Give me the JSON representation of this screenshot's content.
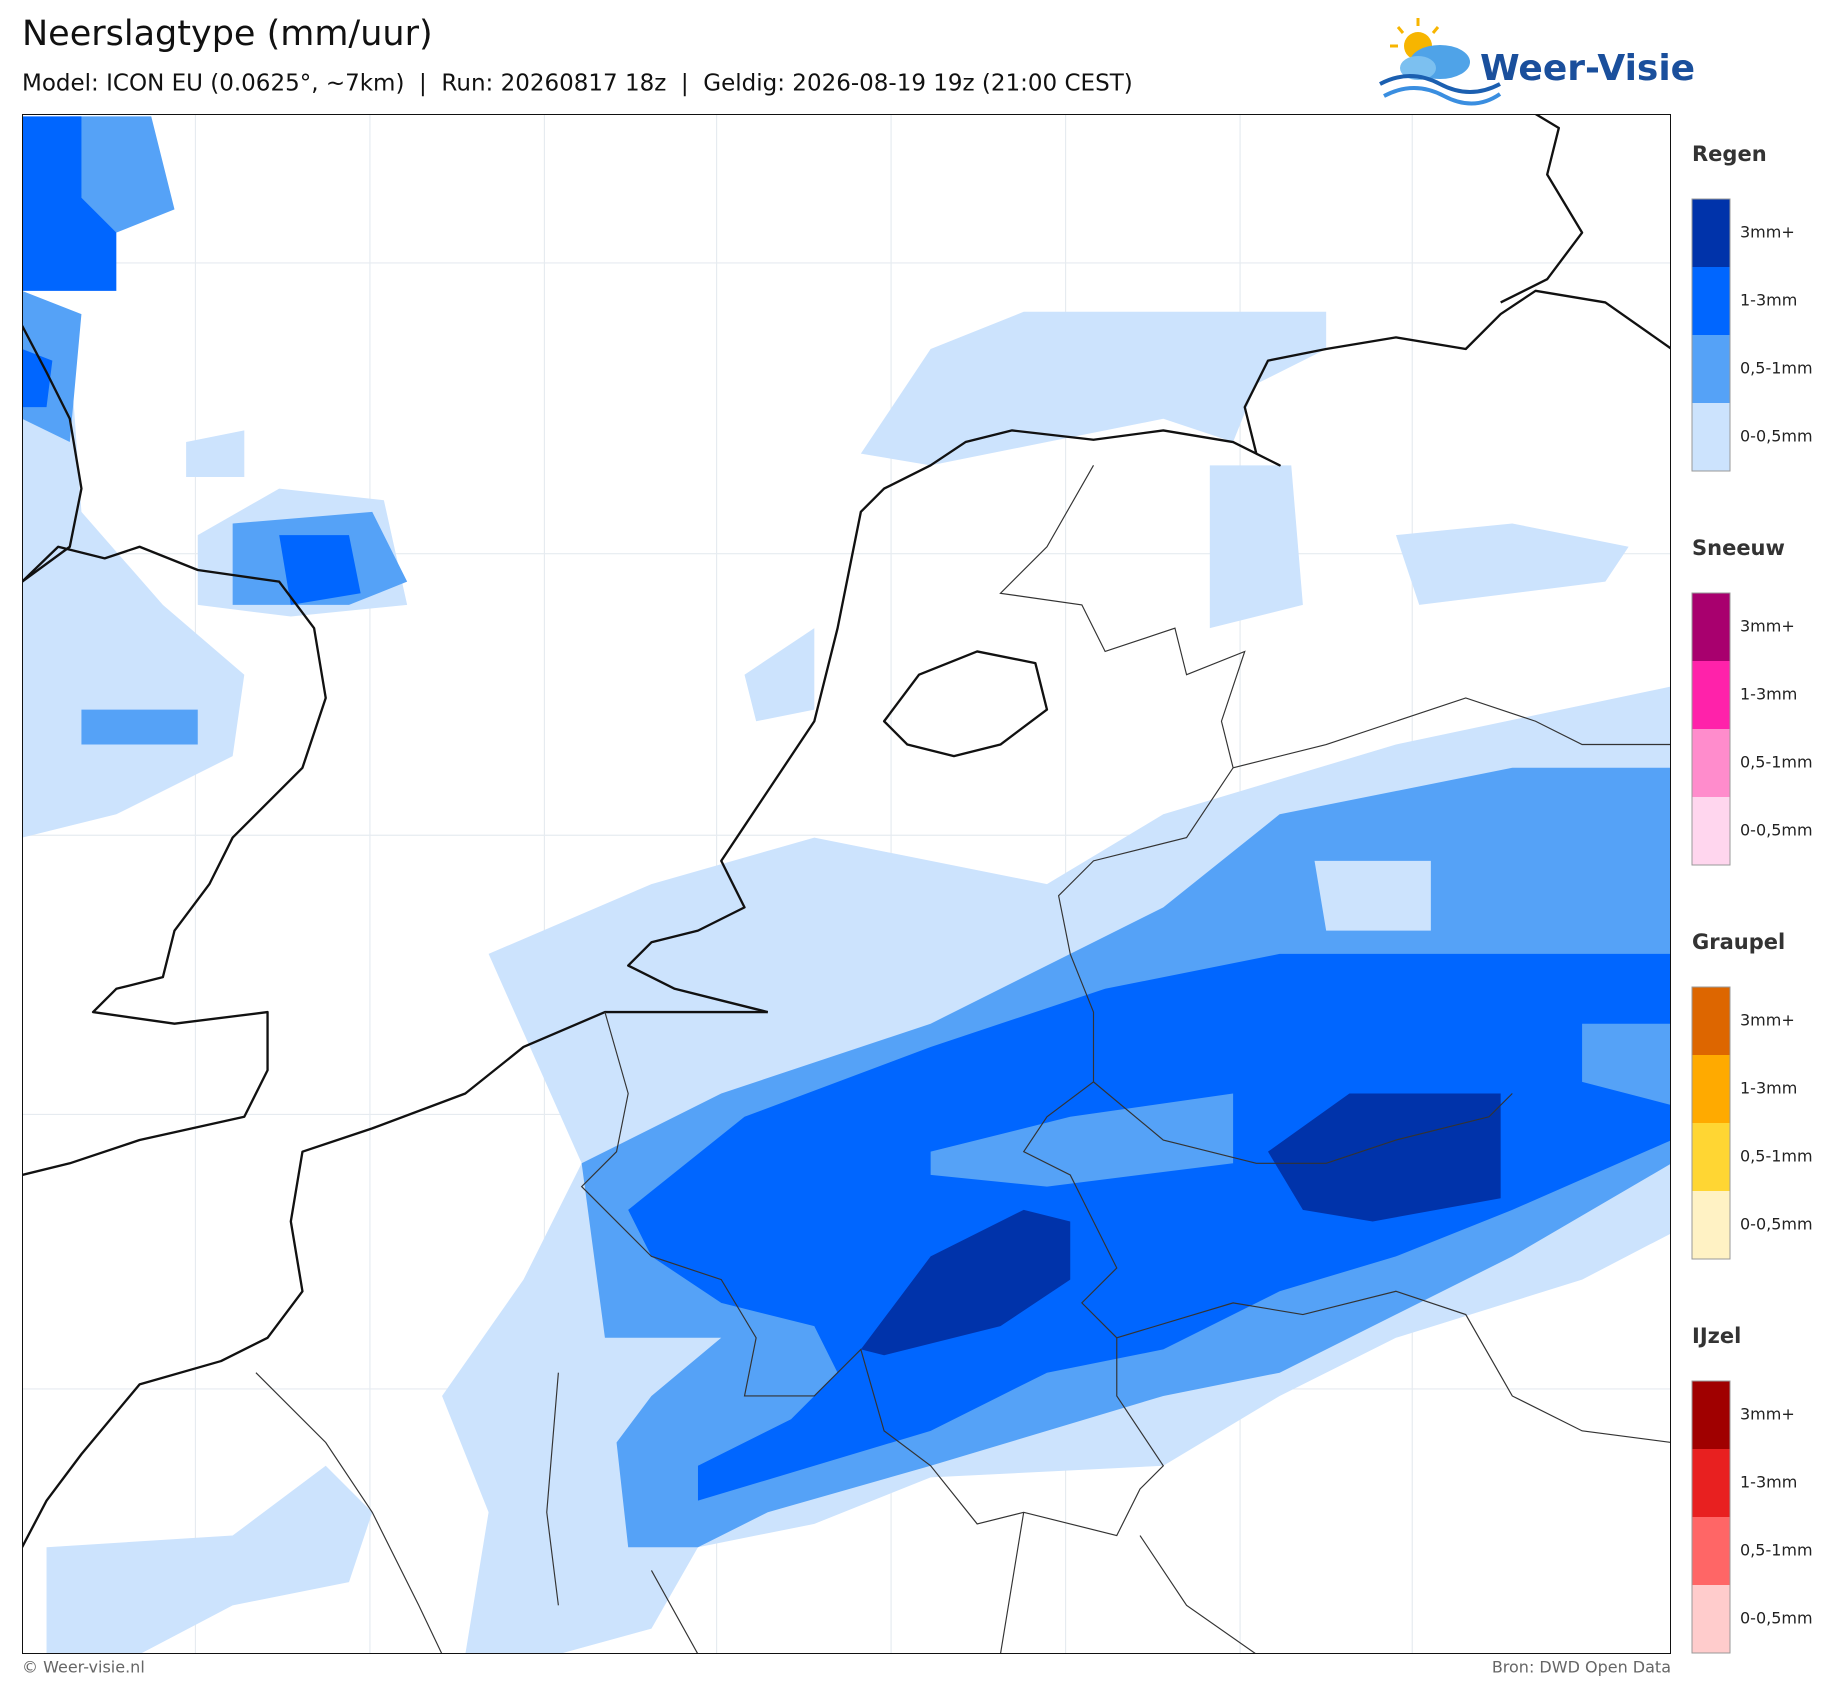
{
  "header": {
    "title": "Neerslagtype (mm/uur)",
    "subtitle": "Model: ICON EU (0.0625°, ~7km)  |  Run: 20260817 18z  |  Geldig: 2026-08-19 19z (21:00 CEST)"
  },
  "logo": {
    "text": "Weer-Visie"
  },
  "legend": [
    {
      "title": "Regen",
      "items": [
        {
          "label": "3mm+",
          "color": "#0033aa"
        },
        {
          "label": "1-3mm",
          "color": "#0066ff"
        },
        {
          "label": "0,5-1mm",
          "color": "#55a2f7"
        },
        {
          "label": "0-0,5mm",
          "color": "#cce3fd"
        }
      ]
    },
    {
      "title": "Sneeuw",
      "items": [
        {
          "label": "3mm+",
          "color": "#a8006e"
        },
        {
          "label": "1-3mm",
          "color": "#ff22aa"
        },
        {
          "label": "0,5-1mm",
          "color": "#ff8ccc"
        },
        {
          "label": "0-0,5mm",
          "color": "#ffd6ee"
        }
      ]
    },
    {
      "title": "Graupel",
      "items": [
        {
          "label": "3mm+",
          "color": "#dd6600"
        },
        {
          "label": "1-3mm",
          "color": "#ffaa00"
        },
        {
          "label": "0,5-1mm",
          "color": "#ffd633"
        },
        {
          "label": "0-0,5mm",
          "color": "#fff2c4"
        }
      ]
    },
    {
      "title": "IJzel",
      "items": [
        {
          "label": "3mm+",
          "color": "#a00000"
        },
        {
          "label": "1-3mm",
          "color": "#e82020"
        },
        {
          "label": "0,5-1mm",
          "color": "#ff6666"
        },
        {
          "label": "0-0,5mm",
          "color": "#ffcccc"
        }
      ]
    }
  ],
  "footer": {
    "credit": "© Weer-visie.nl",
    "source": "Bron: DWD Open Data"
  }
}
